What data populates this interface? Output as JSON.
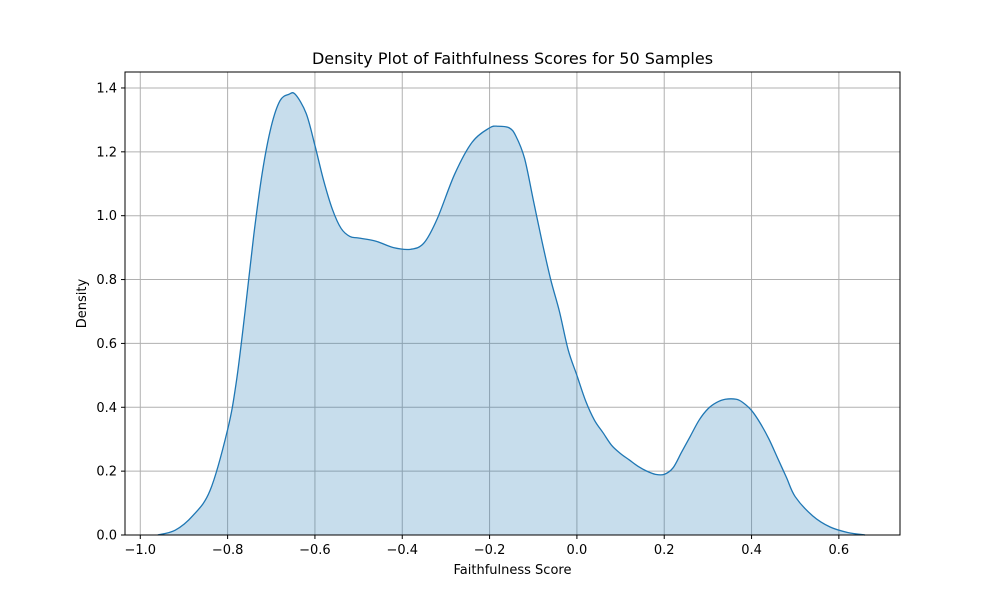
{
  "chart_data": {
    "type": "area",
    "title": "Density Plot of Faithfulness Scores for 50 Samples",
    "xlabel": "Faithfulness Score",
    "ylabel": "Density",
    "xlim": [
      -1.035,
      0.74
    ],
    "ylim": [
      0,
      1.45
    ],
    "xticks": [
      -1.0,
      -0.8,
      -0.6,
      -0.4,
      -0.2,
      0.0,
      0.2,
      0.4,
      0.6
    ],
    "xtick_labels": [
      "−1.0",
      "−0.8",
      "−0.6",
      "−0.4",
      "−0.2",
      "0.0",
      "0.2",
      "0.4",
      "0.6"
    ],
    "yticks": [
      0.0,
      0.2,
      0.4,
      0.6,
      0.8,
      1.0,
      1.2,
      1.4
    ],
    "ytick_labels": [
      "0.0",
      "0.2",
      "0.4",
      "0.6",
      "0.8",
      "1.0",
      "1.2",
      "1.4"
    ],
    "grid": true,
    "line_color": "#1f77b4",
    "fill_color": "#1f77b4",
    "fill_opacity": 0.25,
    "series": [
      {
        "x": [
          -0.96,
          -0.92,
          -0.88,
          -0.84,
          -0.8,
          -0.78,
          -0.76,
          -0.74,
          -0.72,
          -0.7,
          -0.68,
          -0.66,
          -0.645,
          -0.62,
          -0.6,
          -0.58,
          -0.56,
          -0.54,
          -0.52,
          -0.5,
          -0.46,
          -0.42,
          -0.38,
          -0.35,
          -0.32,
          -0.28,
          -0.24,
          -0.2,
          -0.18,
          -0.155,
          -0.14,
          -0.12,
          -0.1,
          -0.08,
          -0.06,
          -0.04,
          -0.02,
          0.0,
          0.02,
          0.04,
          0.06,
          0.08,
          0.1,
          0.12,
          0.14,
          0.16,
          0.18,
          0.2,
          0.22,
          0.24,
          0.26,
          0.28,
          0.3,
          0.32,
          0.34,
          0.365,
          0.38,
          0.4,
          0.42,
          0.44,
          0.46,
          0.48,
          0.5,
          0.54,
          0.58,
          0.62,
          0.66
        ],
        "y": [
          0.0,
          0.015,
          0.06,
          0.14,
          0.33,
          0.48,
          0.7,
          0.94,
          1.14,
          1.28,
          1.36,
          1.38,
          1.38,
          1.32,
          1.22,
          1.11,
          1.02,
          0.96,
          0.935,
          0.93,
          0.92,
          0.9,
          0.895,
          0.915,
          0.99,
          1.13,
          1.23,
          1.275,
          1.28,
          1.275,
          1.25,
          1.18,
          1.05,
          0.92,
          0.8,
          0.7,
          0.58,
          0.5,
          0.42,
          0.36,
          0.32,
          0.28,
          0.255,
          0.235,
          0.215,
          0.2,
          0.19,
          0.19,
          0.21,
          0.26,
          0.31,
          0.36,
          0.395,
          0.415,
          0.425,
          0.425,
          0.415,
          0.39,
          0.35,
          0.3,
          0.24,
          0.18,
          0.12,
          0.06,
          0.025,
          0.008,
          0.0
        ]
      }
    ]
  }
}
